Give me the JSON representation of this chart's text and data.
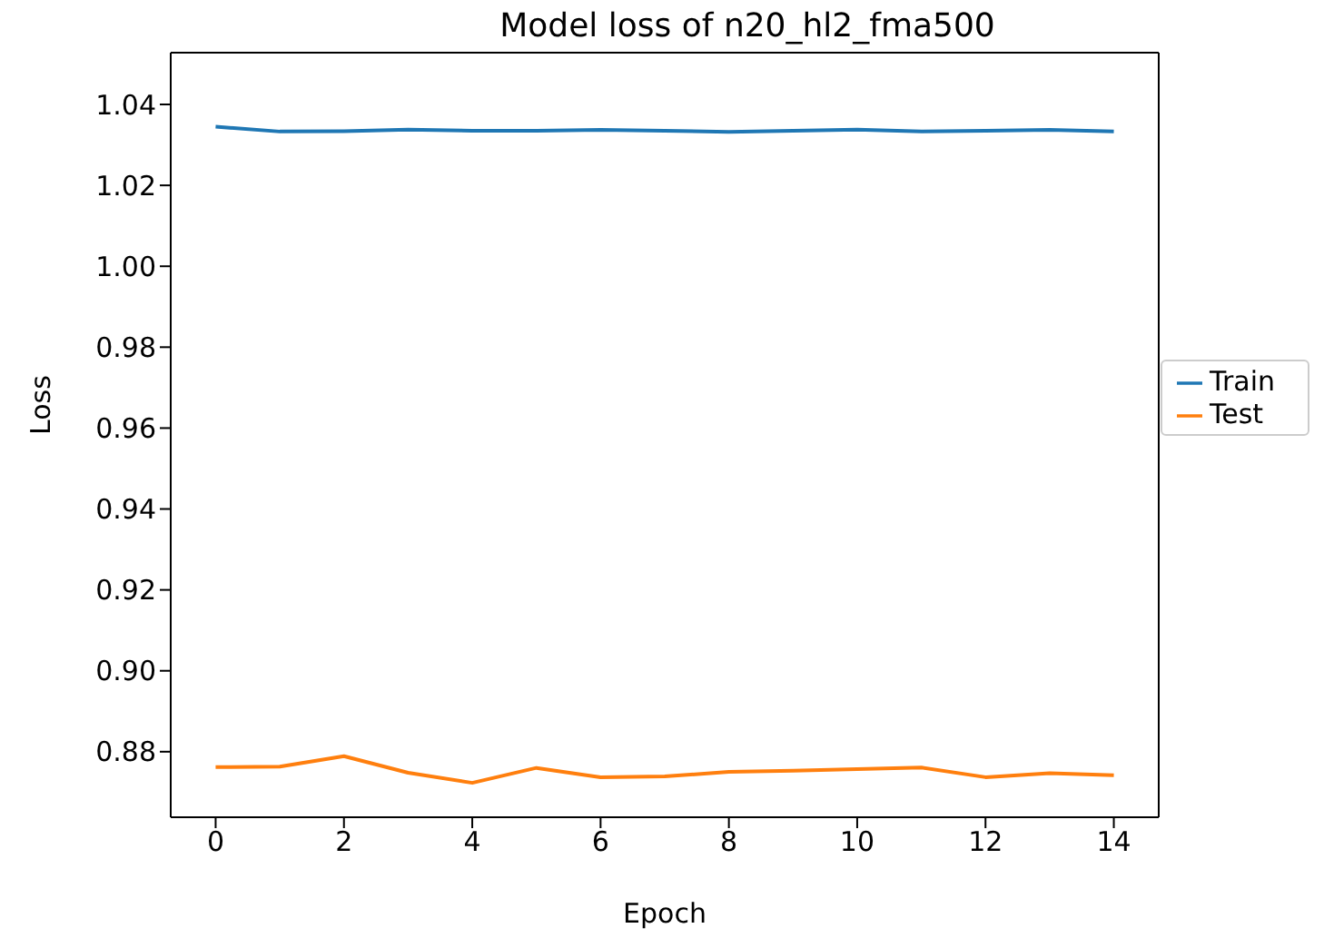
{
  "chart_data": {
    "type": "line",
    "title": "Model loss of n20_hl2_fma500",
    "xlabel": "Epoch",
    "ylabel": "Loss",
    "x": [
      0,
      1,
      2,
      3,
      4,
      5,
      6,
      7,
      8,
      9,
      10,
      11,
      12,
      13,
      14
    ],
    "series": [
      {
        "name": "Train",
        "color": "#1f77b4",
        "values": [
          1.0345,
          1.0333,
          1.0334,
          1.0338,
          1.0335,
          1.0335,
          1.0337,
          1.0335,
          1.0332,
          1.0335,
          1.0338,
          1.0333,
          1.0335,
          1.0337,
          1.0333
        ]
      },
      {
        "name": "Test",
        "color": "#ff7f0e",
        "values": [
          0.8762,
          0.8763,
          0.8789,
          0.8748,
          0.8723,
          0.876,
          0.8737,
          0.8739,
          0.875,
          0.8753,
          0.8757,
          0.8761,
          0.8737,
          0.8747,
          0.8742
        ]
      }
    ],
    "xlim": [
      -0.7,
      14.7
    ],
    "xticks": [
      0,
      2,
      4,
      6,
      8,
      10,
      12,
      14
    ],
    "ylim": [
      0.8638,
      1.0528
    ],
    "yticks": [
      0.88,
      {
        "value": 0.9,
        "label": "0.90"
      },
      0.92,
      0.94,
      0.96,
      0.98,
      {
        "value": 1,
        "label": "1.00"
      },
      1.02,
      1.04
    ],
    "grid": false,
    "legend": "right",
    "marker": "none",
    "line_style": "solid"
  }
}
